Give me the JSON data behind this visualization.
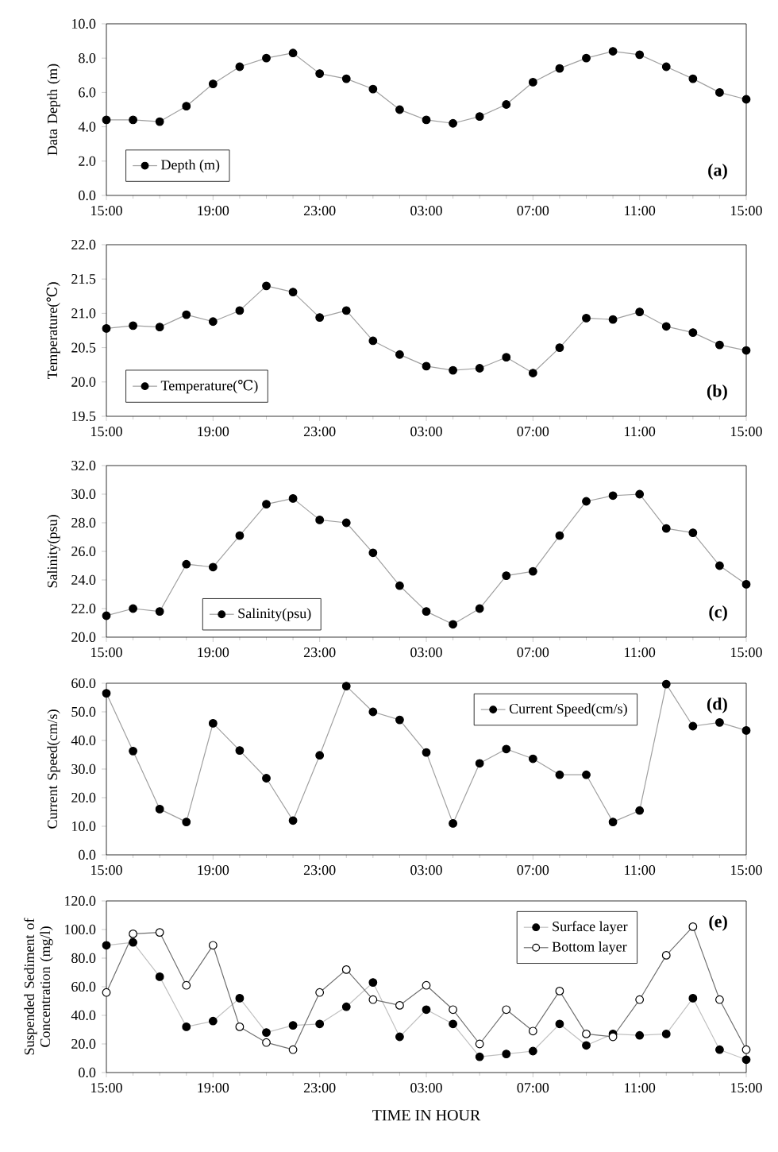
{
  "chart_data": [
    {
      "type": "line",
      "ylabel": "Data Depth (m)",
      "x": [
        "2000-01-01T15:00",
        "2000-01-01T16:00",
        "2000-01-01T17:00",
        "2000-01-01T18:00",
        "2000-01-01T19:00",
        "2000-01-01T20:00",
        "2000-01-01T21:00",
        "2000-01-01T22:00",
        "2000-01-01T23:00",
        "2000-01-02T00:00",
        "2000-01-02T01:00",
        "2000-01-02T02:00",
        "2000-01-02T03:00",
        "2000-01-02T04:00",
        "2000-01-02T05:00",
        "2000-01-02T06:00",
        "2000-01-02T07:00",
        "2000-01-02T08:00",
        "2000-01-02T09:00",
        "2000-01-02T10:00",
        "2000-01-02T11:00",
        "2000-01-02T12:00",
        "2000-01-02T13:00",
        "2000-01-02T14:00",
        "2000-01-02T15:00"
      ],
      "series": [
        {
          "name": "Depth (m)",
          "color": "#a0a0a0",
          "values": [
            4.4,
            4.4,
            4.3,
            5.2,
            6.5,
            7.5,
            8.0,
            8.3,
            7.1,
            6.8,
            6.2,
            5.0,
            4.4,
            4.2,
            4.6,
            5.3,
            6.6,
            7.4,
            8.0,
            8.4,
            8.2,
            7.5,
            6.8,
            6.0,
            5.6
          ]
        }
      ],
      "xlim": [
        "2000-01-01T15:00",
        "2000-01-02T15:00"
      ],
      "xticks": [
        {
          "value": "2000-01-01T15:00",
          "label": "15:00"
        },
        {
          "value": "2000-01-01T19:00",
          "label": "19:00"
        },
        {
          "value": "2000-01-01T23:00",
          "label": "23:00"
        },
        {
          "value": "2000-01-02T03:00",
          "label": "03:00"
        },
        {
          "value": "2000-01-02T07:00",
          "label": "07:00"
        },
        {
          "value": "2000-01-02T11:00",
          "label": "11:00"
        },
        {
          "value": "2000-01-02T15:00",
          "label": "15:00"
        }
      ],
      "ylim": [
        0,
        10
      ],
      "yticks": [
        {
          "value": 0,
          "label": "0.0"
        },
        {
          "value": 2,
          "label": "2.0"
        },
        {
          "value": 4,
          "label": "4.0"
        },
        {
          "value": 6,
          "label": "6.0"
        },
        {
          "value": 8,
          "label": "8.0"
        },
        {
          "value": 10,
          "label": "10.0"
        }
      ],
      "annotations": [
        "(a)"
      ],
      "legend": "bottom left",
      "marker": "circle",
      "grid": false
    },
    {
      "type": "line",
      "ylabel": "Temperature(℃)",
      "x": [
        "2000-01-01T15:00",
        "2000-01-01T16:00",
        "2000-01-01T17:00",
        "2000-01-01T18:00",
        "2000-01-01T19:00",
        "2000-01-01T20:00",
        "2000-01-01T21:00",
        "2000-01-01T22:00",
        "2000-01-01T23:00",
        "2000-01-02T00:00",
        "2000-01-02T01:00",
        "2000-01-02T02:00",
        "2000-01-02T03:00",
        "2000-01-02T04:00",
        "2000-01-02T05:00",
        "2000-01-02T06:00",
        "2000-01-02T07:00",
        "2000-01-02T08:00",
        "2000-01-02T09:00",
        "2000-01-02T10:00",
        "2000-01-02T11:00",
        "2000-01-02T12:00",
        "2000-01-02T13:00",
        "2000-01-02T14:00",
        "2000-01-02T15:00"
      ],
      "series": [
        {
          "name": "Temperature(℃)",
          "color": "#a0a0a0",
          "values": [
            20.78,
            20.82,
            20.8,
            20.98,
            20.88,
            21.04,
            21.4,
            21.31,
            20.94,
            21.04,
            20.6,
            20.4,
            20.23,
            20.17,
            20.2,
            20.36,
            20.13,
            20.5,
            20.93,
            20.91,
            21.02,
            20.81,
            20.72,
            20.54,
            20.46
          ]
        }
      ],
      "xlim": [
        "2000-01-01T15:00",
        "2000-01-02T15:00"
      ],
      "xticks": [
        {
          "value": "2000-01-01T15:00",
          "label": "15:00"
        },
        {
          "value": "2000-01-01T19:00",
          "label": "19:00"
        },
        {
          "value": "2000-01-01T23:00",
          "label": "23:00"
        },
        {
          "value": "2000-01-02T03:00",
          "label": "03:00"
        },
        {
          "value": "2000-01-02T07:00",
          "label": "07:00"
        },
        {
          "value": "2000-01-02T11:00",
          "label": "11:00"
        },
        {
          "value": "2000-01-02T15:00",
          "label": "15:00"
        }
      ],
      "ylim": [
        19.5,
        22
      ],
      "yticks": [
        19.5,
        {
          "value": 20,
          "label": "20.0"
        },
        20.5,
        {
          "value": 21,
          "label": "21.0"
        },
        21.5,
        {
          "value": 22,
          "label": "22.0"
        }
      ],
      "annotations": [
        "(b)"
      ],
      "legend": "bottom left",
      "marker": "circle",
      "grid": false
    },
    {
      "type": "line",
      "ylabel": "Salinity(psu)",
      "x": [
        "2000-01-01T15:00",
        "2000-01-01T16:00",
        "2000-01-01T17:00",
        "2000-01-01T18:00",
        "2000-01-01T19:00",
        "2000-01-01T20:00",
        "2000-01-01T21:00",
        "2000-01-01T22:00",
        "2000-01-01T23:00",
        "2000-01-02T00:00",
        "2000-01-02T01:00",
        "2000-01-02T02:00",
        "2000-01-02T03:00",
        "2000-01-02T04:00",
        "2000-01-02T05:00",
        "2000-01-02T06:00",
        "2000-01-02T07:00",
        "2000-01-02T08:00",
        "2000-01-02T09:00",
        "2000-01-02T10:00",
        "2000-01-02T11:00",
        "2000-01-02T12:00",
        "2000-01-02T13:00",
        "2000-01-02T14:00",
        "2000-01-02T15:00"
      ],
      "series": [
        {
          "name": "Salinity(psu)",
          "color": "#a0a0a0",
          "values": [
            21.5,
            22.0,
            21.8,
            25.1,
            24.9,
            27.1,
            29.3,
            29.7,
            28.2,
            28.0,
            25.9,
            23.6,
            21.8,
            20.9,
            22.0,
            24.3,
            24.6,
            27.1,
            29.5,
            29.9,
            30.0,
            27.6,
            27.3,
            25.0,
            23.7
          ]
        }
      ],
      "xlim": [
        "2000-01-01T15:00",
        "2000-01-02T15:00"
      ],
      "xticks": [
        {
          "value": "2000-01-01T15:00",
          "label": "15:00"
        },
        {
          "value": "2000-01-01T19:00",
          "label": "19:00"
        },
        {
          "value": "2000-01-01T23:00",
          "label": "23:00"
        },
        {
          "value": "2000-01-02T03:00",
          "label": "03:00"
        },
        {
          "value": "2000-01-02T07:00",
          "label": "07:00"
        },
        {
          "value": "2000-01-02T11:00",
          "label": "11:00"
        },
        {
          "value": "2000-01-02T15:00",
          "label": "15:00"
        }
      ],
      "ylim": [
        20,
        32
      ],
      "yticks": [
        {
          "value": 20,
          "label": "20.0"
        },
        {
          "value": 22,
          "label": "22.0"
        },
        {
          "value": 24,
          "label": "24.0"
        },
        {
          "value": 26,
          "label": "26.0"
        },
        {
          "value": 28,
          "label": "28.0"
        },
        {
          "value": 30,
          "label": "30.0"
        },
        {
          "value": 32,
          "label": "32.0"
        }
      ],
      "annotations": [
        "(c)"
      ],
      "legend": "bottom",
      "marker": "circle",
      "grid": false
    },
    {
      "type": "line",
      "ylabel": "Current Speed(cm/s)",
      "x": [
        "2000-01-01T15:00",
        "2000-01-01T16:00",
        "2000-01-01T17:00",
        "2000-01-01T18:00",
        "2000-01-01T19:00",
        "2000-01-01T20:00",
        "2000-01-01T21:00",
        "2000-01-01T22:00",
        "2000-01-01T23:00",
        "2000-01-02T00:00",
        "2000-01-02T01:00",
        "2000-01-02T02:00",
        "2000-01-02T03:00",
        "2000-01-02T04:00",
        "2000-01-02T05:00",
        "2000-01-02T06:00",
        "2000-01-02T07:00",
        "2000-01-02T08:00",
        "2000-01-02T09:00",
        "2000-01-02T10:00",
        "2000-01-02T11:00",
        "2000-01-02T12:00",
        "2000-01-02T13:00",
        "2000-01-02T14:00",
        "2000-01-02T15:00"
      ],
      "series": [
        {
          "name": "Current Speed(cm/s)",
          "color": "#a0a0a0",
          "values": [
            56.5,
            36.3,
            16.0,
            11.5,
            46.0,
            36.5,
            26.8,
            12.0,
            34.8,
            59.0,
            50.0,
            47.2,
            35.8,
            11.0,
            32.0,
            37.0,
            33.6,
            28.0,
            28.0,
            11.5,
            15.5,
            59.7,
            45.0,
            46.3,
            43.5
          ]
        }
      ],
      "xlim": [
        "2000-01-01T15:00",
        "2000-01-02T15:00"
      ],
      "xticks": [
        {
          "value": "2000-01-01T15:00",
          "label": "15:00"
        },
        {
          "value": "2000-01-01T19:00",
          "label": "19:00"
        },
        {
          "value": "2000-01-01T23:00",
          "label": "23:00"
        },
        {
          "value": "2000-01-02T03:00",
          "label": "03:00"
        },
        {
          "value": "2000-01-02T07:00",
          "label": "07:00"
        },
        {
          "value": "2000-01-02T11:00",
          "label": "11:00"
        },
        {
          "value": "2000-01-02T15:00",
          "label": "15:00"
        }
      ],
      "ylim": [
        0,
        60
      ],
      "yticks": [
        {
          "value": 0,
          "label": "0.0"
        },
        {
          "value": 10,
          "label": "10.0"
        },
        {
          "value": 20,
          "label": "20.0"
        },
        {
          "value": 30,
          "label": "30.0"
        },
        {
          "value": 40,
          "label": "40.0"
        },
        {
          "value": 50,
          "label": "50.0"
        },
        {
          "value": 60,
          "label": "60.0"
        }
      ],
      "annotations": [
        "(d)"
      ],
      "legend": "top right",
      "marker": "circle",
      "grid": false
    },
    {
      "type": "line",
      "ylabel": "Suspended Sediment of Concentration (mg/l)",
      "xlabel": "TIME IN HOUR",
      "x": [
        "2000-01-01T15:00",
        "2000-01-01T16:00",
        "2000-01-01T17:00",
        "2000-01-01T18:00",
        "2000-01-01T19:00",
        "2000-01-01T20:00",
        "2000-01-01T21:00",
        "2000-01-01T22:00",
        "2000-01-01T23:00",
        "2000-01-02T00:00",
        "2000-01-02T01:00",
        "2000-01-02T02:00",
        "2000-01-02T03:00",
        "2000-01-02T04:00",
        "2000-01-02T05:00",
        "2000-01-02T06:00",
        "2000-01-02T07:00",
        "2000-01-02T08:00",
        "2000-01-02T09:00",
        "2000-01-02T10:00",
        "2000-01-02T11:00",
        "2000-01-02T12:00",
        "2000-01-02T13:00",
        "2000-01-02T14:00",
        "2000-01-02T15:00"
      ],
      "series": [
        {
          "name": "Surface layer",
          "color": "#c0c0c0",
          "values": [
            89,
            91,
            67,
            32,
            36,
            52,
            28,
            33,
            34,
            46,
            63,
            25,
            44,
            34,
            11,
            13,
            15,
            34,
            19,
            27,
            26,
            27,
            52,
            16,
            9
          ]
        },
        {
          "name": "Bottom layer",
          "color": "#707070",
          "values": [
            56,
            97,
            98,
            61,
            89,
            32,
            21,
            16,
            56,
            72,
            51,
            47,
            61,
            44,
            20,
            44,
            29,
            57,
            27,
            25,
            51,
            82,
            102,
            51,
            16
          ]
        }
      ],
      "xlim": [
        "2000-01-01T15:00",
        "2000-01-02T15:00"
      ],
      "xticks": [
        {
          "value": "2000-01-01T15:00",
          "label": "15:00"
        },
        {
          "value": "2000-01-01T19:00",
          "label": "19:00"
        },
        {
          "value": "2000-01-01T23:00",
          "label": "23:00"
        },
        {
          "value": "2000-01-02T03:00",
          "label": "03:00"
        },
        {
          "value": "2000-01-02T07:00",
          "label": "07:00"
        },
        {
          "value": "2000-01-02T11:00",
          "label": "11:00"
        },
        {
          "value": "2000-01-02T15:00",
          "label": "15:00"
        }
      ],
      "ylim": [
        0,
        120
      ],
      "yticks": [
        {
          "value": 0,
          "label": "0.0"
        },
        {
          "value": 20,
          "label": "20.0"
        },
        {
          "value": 40,
          "label": "40.0"
        },
        {
          "value": 60,
          "label": "60.0"
        },
        {
          "value": 80,
          "label": "80.0"
        },
        {
          "value": 100,
          "label": "100.0"
        },
        {
          "value": 120,
          "label": "120.0"
        }
      ],
      "annotations": [
        "(e)"
      ],
      "legend": "top right",
      "marker": "circle",
      "grid": false
    }
  ]
}
